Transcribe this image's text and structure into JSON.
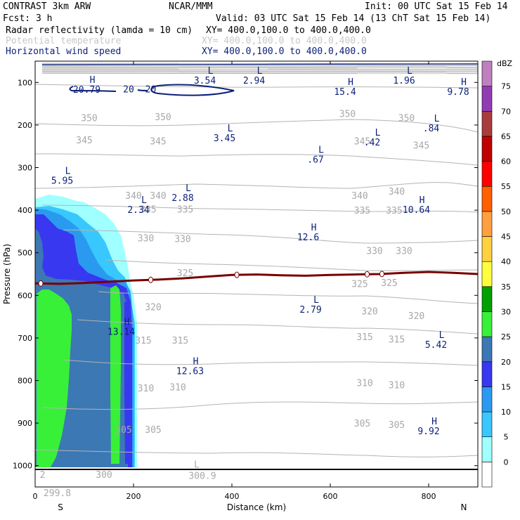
{
  "header": {
    "line1_left": "CONTRAST  3km ARW",
    "line1_mid": "NCAR/MMM",
    "line1_right": "Init: 00 UTC Sat 15 Feb 14",
    "line2_left": "Fcst:    3 h",
    "line2_right": "Valid: 03 UTC Sat 15 Feb 14 (13 ChT Sat 15 Feb 14)",
    "fields": [
      {
        "name": "Radar reflectivity (lamda = 10 cm)",
        "xy": "XY= 400.0,100.0 to 400.0,400.0",
        "color": "#000000"
      },
      {
        "name": "Potential temperature",
        "xy": "XY= 400.0,100.0 to 400.0,400.0",
        "color": "#c8c8c8"
      },
      {
        "name": "Horizontal wind speed",
        "xy": "XY= 400.0,100.0 to 400.0,400.0",
        "color": "#0a1f78"
      }
    ]
  },
  "chart_data": {
    "type": "cross-section",
    "xlabel": "Distance (km)",
    "ylabel": "Pressure (hPa)",
    "xlim": [
      0,
      900
    ],
    "ylim": [
      1050,
      50
    ],
    "x_ticks": [
      "0",
      "200",
      "400",
      "600",
      "800"
    ],
    "y_ticks": [
      "100",
      "200",
      "300",
      "400",
      "500",
      "600",
      "700",
      "800",
      "900",
      "1000"
    ],
    "x_end_labels": {
      "left": "S",
      "right": "N"
    },
    "colorbar": {
      "unit": "dBZ",
      "levels": [
        "0",
        "5",
        "10",
        "15",
        "20",
        "25",
        "30",
        "35",
        "40",
        "45",
        "50",
        "55",
        "60",
        "65",
        "70",
        "75"
      ],
      "colors": [
        "#ffffff",
        "#a0ffff",
        "#38c8ff",
        "#2a9af0",
        "#3838f0",
        "#3c78b4",
        "#38f038",
        "#00a000",
        "#ffff40",
        "#ffd040",
        "#ffa040",
        "#ff6000",
        "#ff0000",
        "#c00000",
        "#a83c3c",
        "#903cb4",
        "#c080c0"
      ]
    },
    "theta_labels": [
      {
        "x": 260,
        "p": 180,
        "text": "350"
      },
      {
        "x": 110,
        "p": 183,
        "text": "350"
      },
      {
        "x": 635,
        "p": 173,
        "text": "350"
      },
      {
        "x": 755,
        "p": 183,
        "text": "350"
      },
      {
        "x": 100,
        "p": 235,
        "text": "345"
      },
      {
        "x": 250,
        "p": 237,
        "text": "345"
      },
      {
        "x": 665,
        "p": 237,
        "text": "345"
      },
      {
        "x": 785,
        "p": 247,
        "text": "345"
      },
      {
        "x": 200,
        "p": 365,
        "text": "340"
      },
      {
        "x": 250,
        "p": 365,
        "text": "340"
      },
      {
        "x": 660,
        "p": 365,
        "text": "340"
      },
      {
        "x": 735,
        "p": 355,
        "text": "340"
      },
      {
        "x": 230,
        "p": 397,
        "text": "335"
      },
      {
        "x": 305,
        "p": 397,
        "text": "335"
      },
      {
        "x": 665,
        "p": 400,
        "text": "335"
      },
      {
        "x": 730,
        "p": 400,
        "text": "335"
      },
      {
        "x": 225,
        "p": 465,
        "text": "330"
      },
      {
        "x": 300,
        "p": 467,
        "text": "330"
      },
      {
        "x": 690,
        "p": 495,
        "text": "330"
      },
      {
        "x": 750,
        "p": 495,
        "text": "330"
      },
      {
        "x": 305,
        "p": 547,
        "text": "325"
      },
      {
        "x": 660,
        "p": 572,
        "text": "325"
      },
      {
        "x": 720,
        "p": 570,
        "text": "325"
      },
      {
        "x": 240,
        "p": 627,
        "text": "320"
      },
      {
        "x": 680,
        "p": 637,
        "text": "320"
      },
      {
        "x": 775,
        "p": 647,
        "text": "320"
      },
      {
        "x": 220,
        "p": 705,
        "text": "315"
      },
      {
        "x": 295,
        "p": 705,
        "text": "315"
      },
      {
        "x": 670,
        "p": 697,
        "text": "315"
      },
      {
        "x": 735,
        "p": 703,
        "text": "315"
      },
      {
        "x": 225,
        "p": 817,
        "text": "310"
      },
      {
        "x": 290,
        "p": 815,
        "text": "310"
      },
      {
        "x": 670,
        "p": 805,
        "text": "310"
      },
      {
        "x": 735,
        "p": 810,
        "text": "310"
      },
      {
        "x": 180,
        "p": 915,
        "text": "305"
      },
      {
        "x": 240,
        "p": 915,
        "text": "305"
      },
      {
        "x": 665,
        "p": 900,
        "text": "305"
      },
      {
        "x": 735,
        "p": 903,
        "text": "305"
      },
      {
        "x": 140,
        "p": 1020,
        "text": "300"
      },
      {
        "x": 15,
        "p": 1020,
        "text": "2"
      },
      {
        "x": 45,
        "p": 1063,
        "text": "299.8"
      }
    ],
    "theta_extrema": [
      {
        "x": 340,
        "p": 1005,
        "type": "L",
        "value": "300.9"
      }
    ],
    "wind_contour_labels": [
      {
        "x": 190,
        "p": 115,
        "text": "20"
      },
      {
        "x": 235,
        "p": 115,
        "text": "20"
      }
    ],
    "wind_extrema": [
      {
        "x": 105,
        "p": 101,
        "type": "H",
        "value": "20.79"
      },
      {
        "x": 345,
        "p": 80,
        "type": "L",
        "value": "3.54"
      },
      {
        "x": 445,
        "p": 80,
        "type": "L",
        "value": "2.94"
      },
      {
        "x": 750,
        "p": 80,
        "type": "L",
        "value": "1.96"
      },
      {
        "x": 860,
        "p": 106,
        "type": "H",
        "value": "9.78"
      },
      {
        "x": 630,
        "p": 106,
        "type": "H",
        "value": "15.4"
      },
      {
        "x": 385,
        "p": 215,
        "type": "L",
        "value": "3.45"
      },
      {
        "x": 685,
        "p": 225,
        "type": "L",
        "value": ".42"
      },
      {
        "x": 805,
        "p": 192,
        "type": "L",
        "value": ".84"
      },
      {
        "x": 570,
        "p": 265,
        "type": "L",
        "value": ".67"
      },
      {
        "x": 55,
        "p": 315,
        "type": "L",
        "value": "5.95"
      },
      {
        "x": 300,
        "p": 355,
        "type": "L",
        "value": "2.88"
      },
      {
        "x": 210,
        "p": 383,
        "type": "L",
        "value": "2.34"
      },
      {
        "x": 775,
        "p": 383,
        "type": "H",
        "value": "10.64"
      },
      {
        "x": 555,
        "p": 448,
        "type": "H",
        "value": "12.6"
      },
      {
        "x": 560,
        "p": 618,
        "type": "L",
        "value": "2.79"
      },
      {
        "x": 175,
        "p": 670,
        "type": "H",
        "value": "13.14"
      },
      {
        "x": 815,
        "p": 700,
        "type": "L",
        "value": "5.42"
      },
      {
        "x": 315,
        "p": 762,
        "type": "H",
        "value": "12.63"
      },
      {
        "x": 800,
        "p": 903,
        "type": "H",
        "value": "9.92"
      }
    ],
    "melting_level": {
      "x": [
        0,
        50,
        100,
        150,
        200,
        250,
        300,
        350,
        400,
        450,
        500,
        550,
        600,
        650,
        700,
        750,
        800,
        850,
        900
      ],
      "p": [
        572,
        573,
        571,
        568,
        565,
        563,
        560,
        556,
        552,
        551,
        553,
        554,
        552,
        551,
        550,
        547,
        545,
        547,
        550
      ],
      "color": "#780000"
    }
  }
}
